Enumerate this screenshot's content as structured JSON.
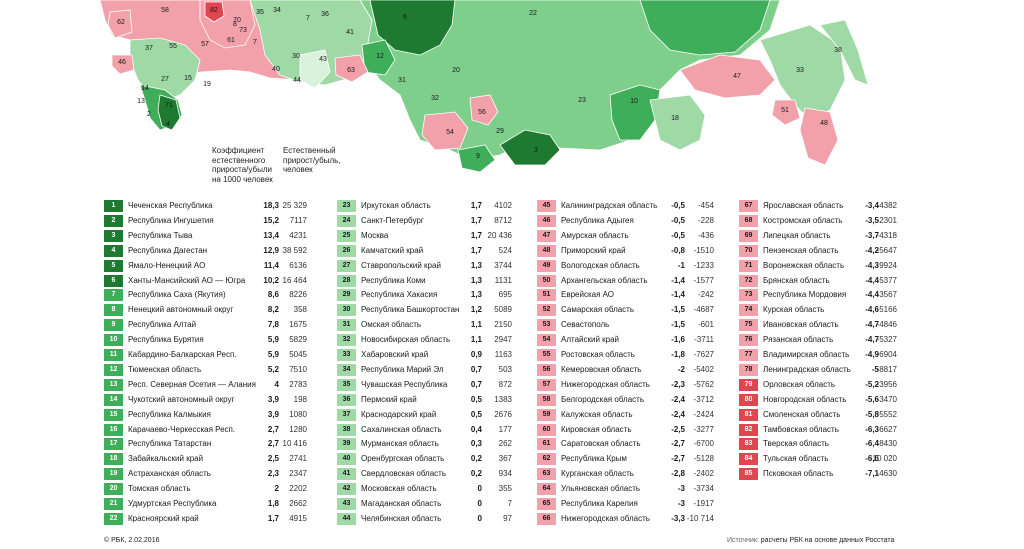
{
  "header": {
    "coef": [
      "Коэффициент",
      "естественного",
      "прироста/убыли",
      "на 1000 человек"
    ],
    "abs": [
      "Естественный",
      "прирост/убыль,",
      "человек"
    ]
  },
  "colors": {
    "dark_green": "#1e7a30",
    "mid_green": "#3fae5a",
    "light_green": "#9ed9a6",
    "light_red": "#f2a1ab",
    "red": "#e0464f"
  },
  "map": {
    "labels": [
      "58",
      "82",
      "70",
      "73",
      "35",
      "34",
      "62",
      "36",
      "6",
      "22",
      "37",
      "55",
      "57",
      "61",
      "8",
      "46",
      "15",
      "27",
      "41",
      "12",
      "40",
      "30",
      "43",
      "63",
      "20",
      "31",
      "38",
      "47",
      "33",
      "19",
      "14",
      "44",
      "13",
      "2",
      "4",
      "71",
      "32",
      "54",
      "56",
      "23",
      "10",
      "29",
      "9",
      "3",
      "18",
      "51",
      "48",
      "7",
      "7"
    ]
  },
  "rows": [
    {
      "rank": "1",
      "name": "Чеченская Республика",
      "coef": "18,3",
      "abs": "25 329"
    },
    {
      "rank": "2",
      "name": "Республика Ингушетия",
      "coef": "15,2",
      "abs": "7117"
    },
    {
      "rank": "3",
      "name": "Республика Тыва",
      "coef": "13,4",
      "abs": "4231"
    },
    {
      "rank": "4",
      "name": "Республика Дагестан",
      "coef": "12,9",
      "abs": "38 592"
    },
    {
      "rank": "5",
      "name": "Ямало-Ненецкий АО",
      "coef": "11,4",
      "abs": "6136"
    },
    {
      "rank": "6",
      "name": "Ханты-Мансийский АО — Югра",
      "coef": "10,2",
      "abs": "16 464"
    },
    {
      "rank": "7",
      "name": "Республика Саха (Якутия)",
      "coef": "8,6",
      "abs": "8226"
    },
    {
      "rank": "8",
      "name": "Ненецкий автономный округ",
      "coef": "8,2",
      "abs": "358"
    },
    {
      "rank": "9",
      "name": "Республика Алтай",
      "coef": "7,8",
      "abs": "1675"
    },
    {
      "rank": "10",
      "name": "Республика Бурятия",
      "coef": "5,9",
      "abs": "5829"
    },
    {
      "rank": "11",
      "name": "Кабардино-Балкарская Респ.",
      "coef": "5,9",
      "abs": "5045"
    },
    {
      "rank": "12",
      "name": "Тюменская область",
      "coef": "5,2",
      "abs": "7510"
    },
    {
      "rank": "13",
      "name": "Респ. Северная Осетия — Алания",
      "coef": "4",
      "abs": "2783"
    },
    {
      "rank": "14",
      "name": "Чукотский автономный округ",
      "coef": "3,9",
      "abs": "198"
    },
    {
      "rank": "15",
      "name": "Республика Калмыкия",
      "coef": "3,9",
      "abs": "1080"
    },
    {
      "rank": "16",
      "name": "Карачаево-Черкесская Респ.",
      "coef": "2,7",
      "abs": "1280"
    },
    {
      "rank": "17",
      "name": "Республика Татарстан",
      "coef": "2,7",
      "abs": "10 416"
    },
    {
      "rank": "18",
      "name": "Забайкальский край",
      "coef": "2,5",
      "abs": "2741"
    },
    {
      "rank": "19",
      "name": "Астраханская область",
      "coef": "2,3",
      "abs": "2347"
    },
    {
      "rank": "20",
      "name": "Томская область",
      "coef": "2",
      "abs": "2202"
    },
    {
      "rank": "21",
      "name": "Удмуртская Республика",
      "coef": "1,8",
      "abs": "2662"
    },
    {
      "rank": "22",
      "name": "Красноярский край",
      "coef": "1,7",
      "abs": "4915"
    },
    {
      "rank": "23",
      "name": "Иркутская область",
      "coef": "1,7",
      "abs": "4102"
    },
    {
      "rank": "24",
      "name": "Санкт-Петербург",
      "coef": "1,7",
      "abs": "8712"
    },
    {
      "rank": "25",
      "name": "Москва",
      "coef": "1,7",
      "abs": "20 436"
    },
    {
      "rank": "26",
      "name": "Камчатский край",
      "coef": "1,7",
      "abs": "524"
    },
    {
      "rank": "27",
      "name": "Ставропольский край",
      "coef": "1,3",
      "abs": "3744"
    },
    {
      "rank": "28",
      "name": "Республика Коми",
      "coef": "1,3",
      "abs": "1131"
    },
    {
      "rank": "29",
      "name": "Республика Хакасия",
      "coef": "1,3",
      "abs": "695"
    },
    {
      "rank": "30",
      "name": "Республика Башкортостан",
      "coef": "1,2",
      "abs": "5089"
    },
    {
      "rank": "31",
      "name": "Омская область",
      "coef": "1,1",
      "abs": "2150"
    },
    {
      "rank": "32",
      "name": "Новосибирская область",
      "coef": "1,1",
      "abs": "2947"
    },
    {
      "rank": "33",
      "name": "Хабаровский край",
      "coef": "0,9",
      "abs": "1163"
    },
    {
      "rank": "34",
      "name": "Республика Марий Эл",
      "coef": "0,7",
      "abs": "503"
    },
    {
      "rank": "35",
      "name": "Чувашская Республика",
      "coef": "0,7",
      "abs": "872"
    },
    {
      "rank": "36",
      "name": "Пермский край",
      "coef": "0,5",
      "abs": "1383"
    },
    {
      "rank": "37",
      "name": "Краснодарский край",
      "coef": "0,5",
      "abs": "2676"
    },
    {
      "rank": "38",
      "name": "Сахалинская область",
      "coef": "0,4",
      "abs": "177"
    },
    {
      "rank": "39",
      "name": "Мурманская область",
      "coef": "0,3",
      "abs": "262"
    },
    {
      "rank": "40",
      "name": "Оренбургская область",
      "coef": "0,2",
      "abs": "367"
    },
    {
      "rank": "41",
      "name": "Свердловская область",
      "coef": "0,2",
      "abs": "934"
    },
    {
      "rank": "42",
      "name": "Московская область",
      "coef": "0",
      "abs": "355"
    },
    {
      "rank": "43",
      "name": "Магаданская область",
      "coef": "0",
      "abs": "7"
    },
    {
      "rank": "44",
      "name": "Челябинская область",
      "coef": "0",
      "abs": "97"
    },
    {
      "rank": "45",
      "name": "Калининградская область",
      "coef": "-0,5",
      "abs": "-454"
    },
    {
      "rank": "46",
      "name": "Республика Адыгея",
      "coef": "-0,5",
      "abs": "-228"
    },
    {
      "rank": "47",
      "name": "Амурская область",
      "coef": "-0,5",
      "abs": "-436"
    },
    {
      "rank": "48",
      "name": "Приморский край",
      "coef": "-0,8",
      "abs": "-1510"
    },
    {
      "rank": "49",
      "name": "Вологодская область",
      "coef": "-1",
      "abs": "-1233"
    },
    {
      "rank": "50",
      "name": "Архангельская область",
      "coef": "-1,4",
      "abs": "-1577"
    },
    {
      "rank": "51",
      "name": "Еврейская АО",
      "coef": "-1,4",
      "abs": "-242"
    },
    {
      "rank": "52",
      "name": "Самарская область",
      "coef": "-1,5",
      "abs": "-4687"
    },
    {
      "rank": "53",
      "name": "Севастополь",
      "coef": "-1,5",
      "abs": "-601"
    },
    {
      "rank": "54",
      "name": "Алтайский край",
      "coef": "-1,6",
      "abs": "-3711"
    },
    {
      "rank": "55",
      "name": "Ростовская область",
      "coef": "-1,8",
      "abs": "-7627"
    },
    {
      "rank": "56",
      "name": "Кемеровская область",
      "coef": "-2",
      "abs": "-5402"
    },
    {
      "rank": "57",
      "name": "Нижегородская область",
      "coef": "-2,3",
      "abs": "-5762"
    },
    {
      "rank": "58",
      "name": "Белгородская область",
      "coef": "-2,4",
      "abs": "-3712"
    },
    {
      "rank": "59",
      "name": "Калужская область",
      "coef": "-2,4",
      "abs": "-2424"
    },
    {
      "rank": "60",
      "name": "Кировская область",
      "coef": "-2,5",
      "abs": "-3277"
    },
    {
      "rank": "61",
      "name": "Саратовская область",
      "coef": "-2,7",
      "abs": "-6700"
    },
    {
      "rank": "62",
      "name": "Республика Крым",
      "coef": "-2,7",
      "abs": "-5128"
    },
    {
      "rank": "63",
      "name": "Курганская область",
      "coef": "-2,8",
      "abs": "-2402"
    },
    {
      "rank": "64",
      "name": "Ульяновская область",
      "coef": "-3",
      "abs": "-3734"
    },
    {
      "rank": "65",
      "name": "Республика Карелия",
      "coef": "-3",
      "abs": "-1917"
    },
    {
      "rank": "66",
      "name": "Нижегородская область",
      "coef": "-3,3",
      "abs": "-10 714"
    },
    {
      "rank": "67",
      "name": "Ярославская область",
      "coef": "-3,4",
      "abs": "-4382"
    },
    {
      "rank": "68",
      "name": "Костромская область",
      "coef": "-3,5",
      "abs": "-2301"
    },
    {
      "rank": "69",
      "name": "Липецкая область",
      "coef": "-3,7",
      "abs": "-4318"
    },
    {
      "rank": "70",
      "name": "Пензенская область",
      "coef": "-4,2",
      "abs": "-5647"
    },
    {
      "rank": "71",
      "name": "Воронежская область",
      "coef": "-4,3",
      "abs": "-9924"
    },
    {
      "rank": "72",
      "name": "Брянская область",
      "coef": "-4,4",
      "abs": "-5377"
    },
    {
      "rank": "73",
      "name": "Республика Мордовия",
      "coef": "-4,4",
      "abs": "-3567"
    },
    {
      "rank": "74",
      "name": "Курская область",
      "coef": "-4,6",
      "abs": "-5166"
    },
    {
      "rank": "75",
      "name": "Ивановская область",
      "coef": "-4,7",
      "abs": "-4846"
    },
    {
      "rank": "76",
      "name": "Рязанская область",
      "coef": "-4,7",
      "abs": "-5327"
    },
    {
      "rank": "77",
      "name": "Владимирская область",
      "coef": "-4,9",
      "abs": "-6904"
    },
    {
      "rank": "78",
      "name": "Ленинградская область",
      "coef": "-5",
      "abs": "-8817"
    },
    {
      "rank": "79",
      "name": "Орловская область",
      "coef": "-5,2",
      "abs": "-3956"
    },
    {
      "rank": "80",
      "name": "Новгородская область",
      "coef": "-5,6",
      "abs": "-3470"
    },
    {
      "rank": "81",
      "name": "Смоленская область",
      "coef": "-5,8",
      "abs": "-5552"
    },
    {
      "rank": "82",
      "name": "Тамбовская область",
      "coef": "-6,3",
      "abs": "-6627"
    },
    {
      "rank": "83",
      "name": "Тверская область",
      "coef": "-6,4",
      "abs": "-8430"
    },
    {
      "rank": "84",
      "name": "Тульская область",
      "coef": "-6,6",
      "abs": "-10 020"
    },
    {
      "rank": "85",
      "name": "Псковская область",
      "coef": "-7,1",
      "abs": "-4630"
    }
  ],
  "footer": {
    "left": "© РБК, 2.02.2016",
    "source_label": "Источник:",
    "source_text": "расчеты РБК на основе данных Росстата"
  }
}
